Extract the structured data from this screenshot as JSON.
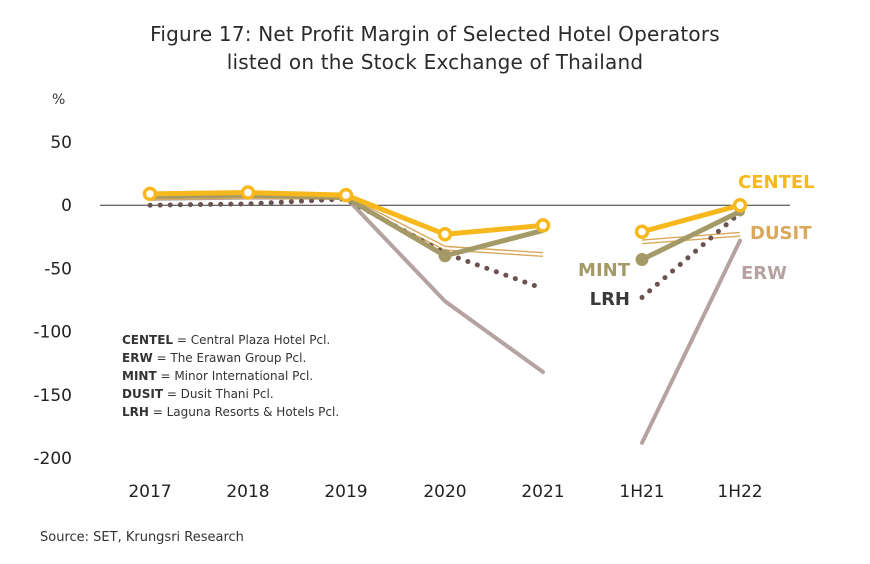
{
  "title_line1": "Figure 17:  Net Profit Margin of Selected Hotel Operators",
  "title_line2": "listed on the Stock Exchange of Thailand",
  "source": "Source: SET, Krungsri Research",
  "chart_data": {
    "type": "line",
    "ylabel": "%",
    "ylim": [
      -200,
      50
    ],
    "yticks": [
      50,
      0,
      -50,
      -100,
      -150,
      -200
    ],
    "categories": [
      "2017",
      "2018",
      "2019",
      "2020",
      "2021",
      "1H21",
      "1H22"
    ],
    "series": [
      {
        "name": "CENTEL",
        "color": "#f6b81c",
        "style": "solid-thick-rings",
        "label": "CENTEL",
        "segments": [
          {
            "x": [
              "2017",
              "2018",
              "2019",
              "2020",
              "2021"
            ],
            "y": [
              9,
              10,
              8,
              -23,
              -16
            ]
          },
          {
            "x": [
              "1H21",
              "1H22"
            ],
            "y": [
              -21,
              0
            ]
          }
        ]
      },
      {
        "name": "ERW",
        "color": "#b4a3a0",
        "style": "solid",
        "label": "ERW",
        "segments": [
          {
            "x": [
              "2017",
              "2018",
              "2019",
              "2020",
              "2021"
            ],
            "y": [
              5,
              6,
              6,
              -76,
              -132
            ]
          },
          {
            "x": [
              "1H21",
              "1H22"
            ],
            "y": [
              -188,
              -28
            ]
          }
        ]
      },
      {
        "name": "MINT",
        "color": "#a49a68",
        "style": "solid-markers",
        "label": "MINT",
        "segments": [
          {
            "x": [
              "2017",
              "2018",
              "2019",
              "2020",
              "2021"
            ],
            "y": [
              7,
              8,
              6,
              -40,
              -20
            ]
          },
          {
            "x": [
              "1H21",
              "1H22"
            ],
            "y": [
              -43,
              -5
            ]
          }
        ]
      },
      {
        "name": "DUSIT",
        "color": "#d9a85c",
        "style": "double",
        "label": "DUSIT",
        "segments": [
          {
            "x": [
              "2017",
              "2018",
              "2019",
              "2020",
              "2021"
            ],
            "y": [
              6,
              7,
              6,
              -34,
              -39
            ]
          },
          {
            "x": [
              "1H21",
              "1H22"
            ],
            "y": [
              -29,
              -23
            ]
          }
        ]
      },
      {
        "name": "LRH",
        "color": "#6a5350",
        "style": "dotted",
        "label": "LRH",
        "segments": [
          {
            "x": [
              "2017",
              "2018",
              "2019",
              "2020",
              "2021"
            ],
            "y": [
              0,
              1,
              5,
              -38,
              -66
            ]
          },
          {
            "x": [
              "1H21",
              "1H22"
            ],
            "y": [
              -73,
              -6
            ]
          }
        ]
      }
    ],
    "legend_notes": [
      {
        "code": "CENTEL",
        "text": " = Central Plaza Hotel Pcl."
      },
      {
        "code": "ERW",
        "text": " = The Erawan Group Pcl."
      },
      {
        "code": "MINT",
        "text": " = Minor International Pcl."
      },
      {
        "code": "DUSIT",
        "text": " = Dusit Thani Pcl."
      },
      {
        "code": "LRH",
        "text": " = Laguna Resorts & Hotels Pcl."
      }
    ],
    "legend_placement": "lower-left",
    "grid": false
  }
}
